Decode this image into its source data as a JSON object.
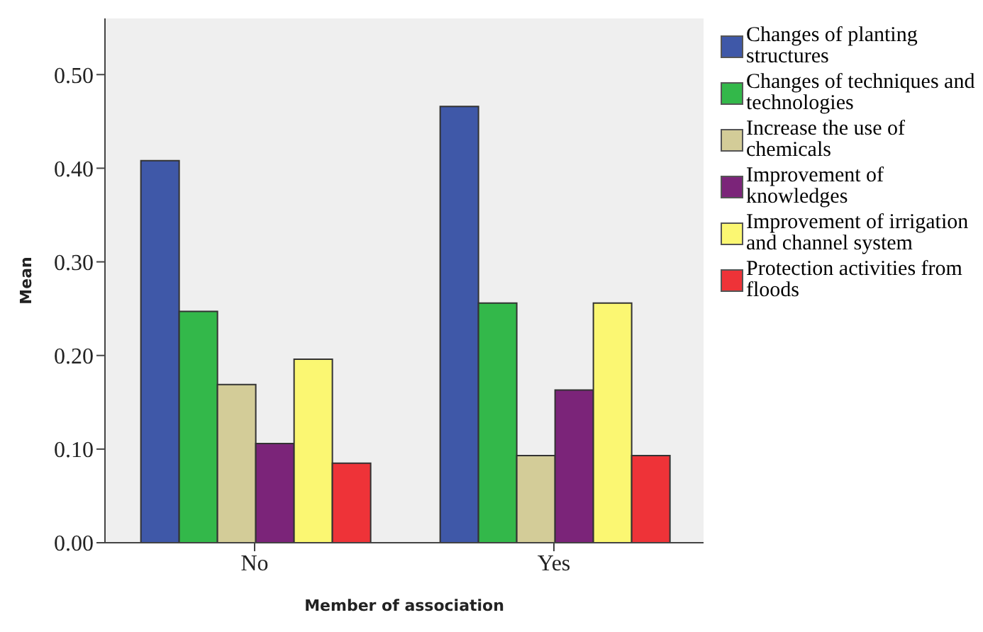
{
  "chart_data": {
    "type": "bar",
    "xlabel": "Member of association",
    "ylabel": "Mean",
    "categories": [
      "No",
      "Yes"
    ],
    "series": [
      {
        "name": "Changes of planting structures",
        "color": "#3f58a8",
        "values": [
          0.408,
          0.466
        ]
      },
      {
        "name": "Changes of techniques and technologies",
        "color": "#33b84a",
        "values": [
          0.247,
          0.256
        ]
      },
      {
        "name": "Increase the use of chemicals",
        "color": "#d3cc98",
        "values": [
          0.169,
          0.093
        ]
      },
      {
        "name": "Improvement of knowledges",
        "color": "#7b2479",
        "values": [
          0.106,
          0.163
        ]
      },
      {
        "name": "Improvement of irrigation and channel system",
        "color": "#fbf772",
        "values": [
          0.196,
          0.256
        ]
      },
      {
        "name": "Protection activities from floods",
        "color": "#ee3338",
        "values": [
          0.085,
          0.093
        ]
      }
    ],
    "ylim": [
      0,
      0.56
    ],
    "yticks": [
      {
        "value": 0,
        "label": "0.00"
      },
      {
        "value": 0.1,
        "label": "0.10"
      },
      {
        "value": 0.2,
        "label": "0.20"
      },
      {
        "value": 0.3,
        "label": "0.30"
      },
      {
        "value": 0.4,
        "label": "0.40"
      },
      {
        "value": 0.5,
        "label": "0.50"
      }
    ],
    "grid": false,
    "legend": "right"
  }
}
